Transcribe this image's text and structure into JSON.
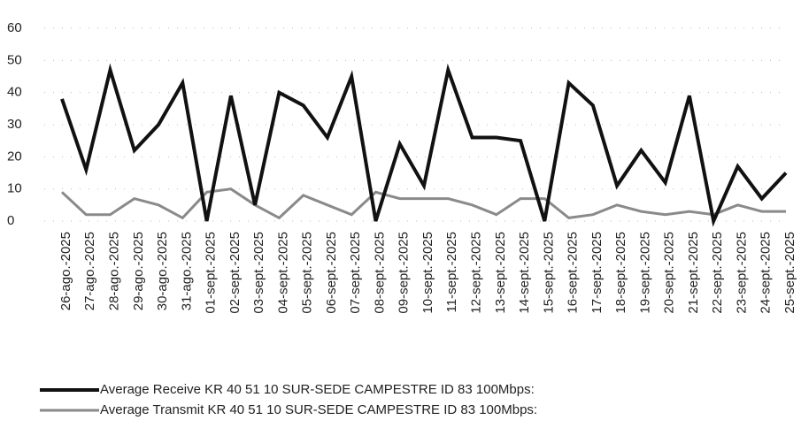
{
  "chart_data": {
    "type": "line",
    "categories": [
      "26-ago.-2025",
      "27-ago.-2025",
      "28-ago.-2025",
      "29-ago.-2025",
      "30-ago.-2025",
      "31-ago.-2025",
      "01-sept.-2025",
      "02-sept.-2025",
      "03-sept.-2025",
      "04-sept.-2025",
      "05-sept.-2025",
      "06-sept.-2025",
      "07-sept.-2025",
      "08-sept.-2025",
      "09-sept.-2025",
      "10-sept.-2025",
      "11-sept.-2025",
      "12-sept.-2025",
      "13-sept.-2025",
      "14-sept.-2025",
      "15-sept.-2025",
      "16-sept.-2025",
      "17-sept.-2025",
      "18-sept.-2025",
      "19-sept.-2025",
      "20-sept.-2025",
      "21-sept.-2025",
      "22-sept.-2025",
      "23-sept.-2025",
      "24-sept.-2025",
      "25-sept.-2025"
    ],
    "series": [
      {
        "name": "Average Receive KR 40 51 10 SUR-SEDE CAMPESTRE ID 83 100Mbps:",
        "color": "#111111",
        "values": [
          38,
          16,
          47,
          22,
          30,
          43,
          0,
          39,
          5,
          40,
          36,
          26,
          45,
          0,
          24,
          11,
          47,
          26,
          26,
          25,
          0,
          43,
          36,
          11,
          22,
          12,
          39,
          0,
          17,
          7,
          15
        ]
      },
      {
        "name": "Average Transmit KR 40 51 10 SUR-SEDE CAMPESTRE ID 83 100Mbps:",
        "color": "#8a8a8a",
        "values": [
          9,
          2,
          2,
          7,
          5,
          1,
          9,
          10,
          5,
          1,
          8,
          5,
          2,
          9,
          7,
          7,
          7,
          5,
          2,
          7,
          7,
          1,
          2,
          5,
          3,
          2,
          3,
          2,
          5,
          3,
          3
        ]
      }
    ],
    "ylim": [
      0,
      60
    ],
    "yticks": [
      0,
      10,
      20,
      30,
      40,
      50,
      60
    ],
    "grid": true,
    "legend": "bottom"
  }
}
